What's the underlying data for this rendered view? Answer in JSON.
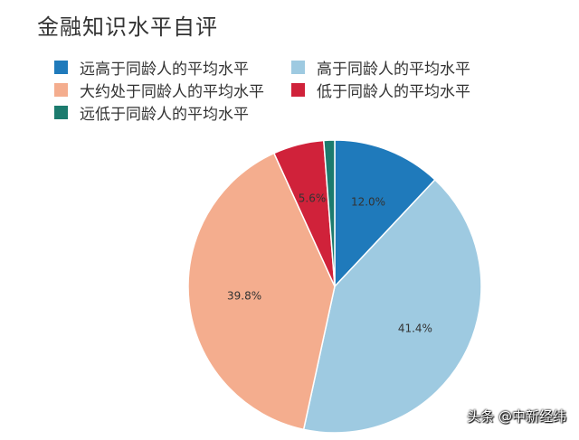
{
  "chart_data": {
    "type": "pie",
    "title": "金融知识水平自评",
    "categories": [
      "远高于同龄人的平均水平",
      "高于同龄人的平均水平",
      "大约处于同龄人的平均水平",
      "低于同龄人的平均水平",
      "远低于同龄人的平均水平"
    ],
    "values": [
      12.0,
      41.4,
      39.8,
      5.6,
      1.2
    ],
    "value_labels": [
      "12.0%",
      "41.4%",
      "39.8%",
      "5.6%",
      ""
    ],
    "colors": [
      "#1f7abb",
      "#9ecae1",
      "#f4ad8e",
      "#d0223a",
      "#1c7b6e"
    ],
    "start": "12 o'clock",
    "direction": "clockwise",
    "legend_position": "top-left"
  },
  "watermark": "头条 @中新经纬"
}
